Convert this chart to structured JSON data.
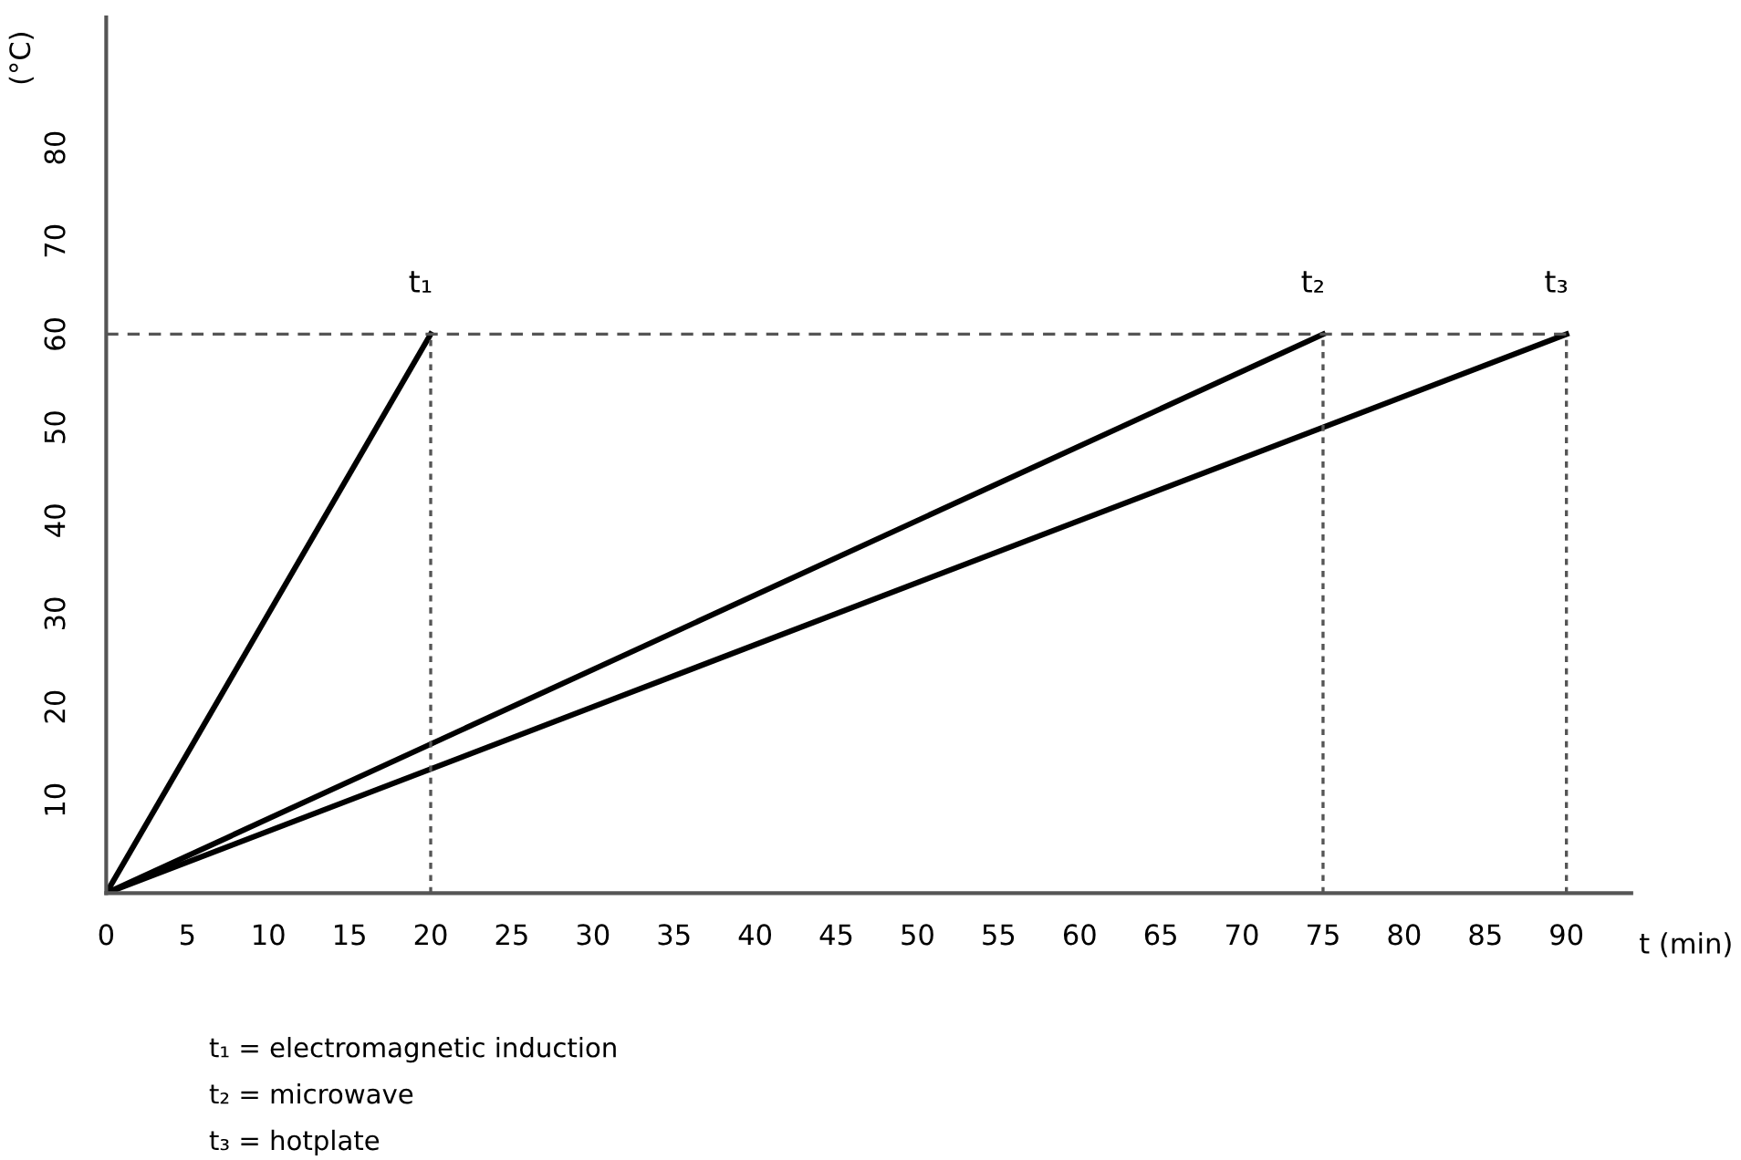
{
  "chart_data": {
    "type": "line",
    "xlabel": "t (min)",
    "ylabel": "(°C)",
    "xlim": [
      0,
      94
    ],
    "ylim": [
      0,
      94
    ],
    "xticks": [
      0,
      5,
      10,
      15,
      20,
      25,
      30,
      35,
      40,
      45,
      50,
      55,
      60,
      65,
      70,
      75,
      80,
      85,
      90
    ],
    "yticks": [
      10,
      20,
      30,
      40,
      50,
      60,
      70,
      80
    ],
    "grid": false,
    "legend": false,
    "marker": "none",
    "series": [
      {
        "x": [
          0,
          20
        ],
        "values": [
          0,
          60
        ],
        "color": "#000000",
        "line_style": "solid"
      },
      {
        "x": [
          0,
          75
        ],
        "values": [
          0,
          60
        ],
        "color": "#000000",
        "line_style": "solid"
      },
      {
        "x": [
          0,
          90
        ],
        "values": [
          0,
          60
        ],
        "color": "#000000",
        "line_style": "solid"
      },
      {
        "x": [
          0,
          90
        ],
        "values": [
          60,
          60
        ],
        "color": "#555555",
        "line_style": "dashed"
      },
      {
        "x": [
          20,
          20
        ],
        "values": [
          0,
          60
        ],
        "color": "#555555",
        "line_style": "dotted"
      },
      {
        "x": [
          75,
          75
        ],
        "values": [
          0,
          60
        ],
        "color": "#555555",
        "line_style": "dotted"
      },
      {
        "x": [
          90,
          90
        ],
        "values": [
          0,
          60
        ],
        "color": "#555555",
        "line_style": "dotted"
      }
    ],
    "annotations": [
      {
        "text": "t₁",
        "x": 20,
        "y": 60
      },
      {
        "text": "t₂",
        "x": 75,
        "y": 60
      },
      {
        "text": "t₃",
        "x": 90,
        "y": 60
      },
      "t₁ = electromagnetic induction",
      "t₂ = microwave",
      "t₃ = hotplate"
    ]
  }
}
